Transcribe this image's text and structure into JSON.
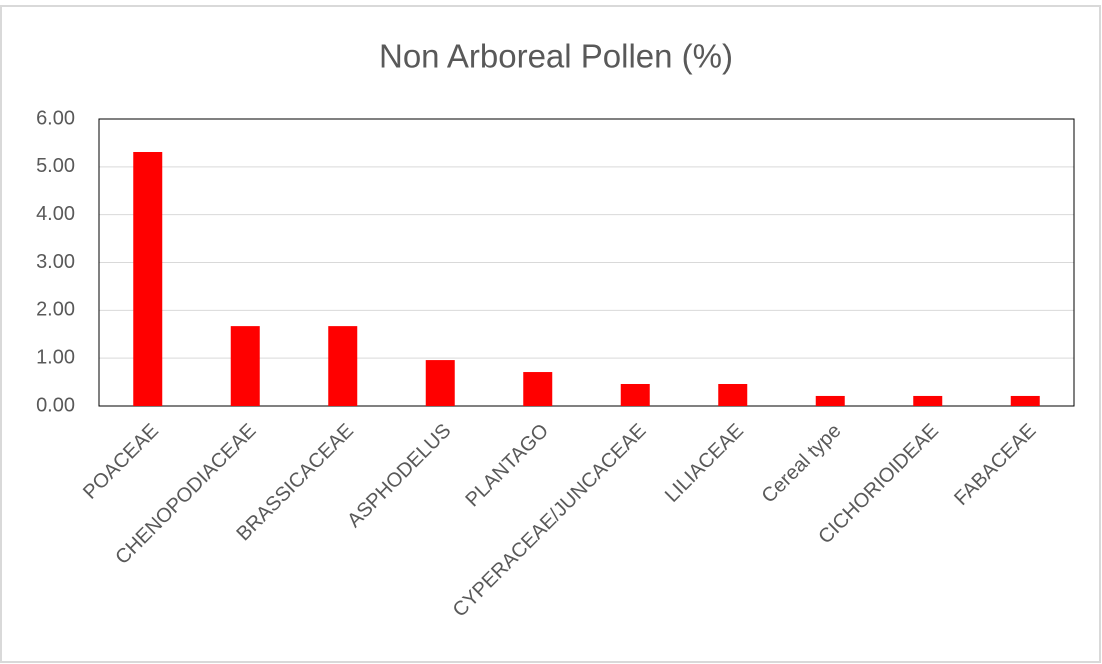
{
  "chart_data": {
    "type": "bar",
    "title": "Non Arboreal Pollen (%)",
    "categories": [
      "POACEAE",
      "CHENOPODIACEAE",
      "BRASSICACEAE",
      "ASPHODELUS",
      "PLANTAGO",
      "CYPERACEAE/JUNCACEAE",
      "LILIACEAE",
      "Cereal type",
      "CICHORIOIDEAE",
      "FABACEAE"
    ],
    "values": [
      5.31,
      1.67,
      1.67,
      0.96,
      0.71,
      0.46,
      0.46,
      0.21,
      0.21,
      0.21
    ],
    "color": "#ff0000",
    "ylim": [
      0,
      6
    ],
    "yticks": [
      {
        "value": 0,
        "label": "0.00"
      },
      {
        "value": 1,
        "label": "1.00"
      },
      {
        "value": 2,
        "label": "2.00"
      },
      {
        "value": 3,
        "label": "3.00"
      },
      {
        "value": 4,
        "label": "4.00"
      },
      {
        "value": 5,
        "label": "5.00"
      },
      {
        "value": 6,
        "label": "6.00"
      }
    ],
    "grid": true
  }
}
